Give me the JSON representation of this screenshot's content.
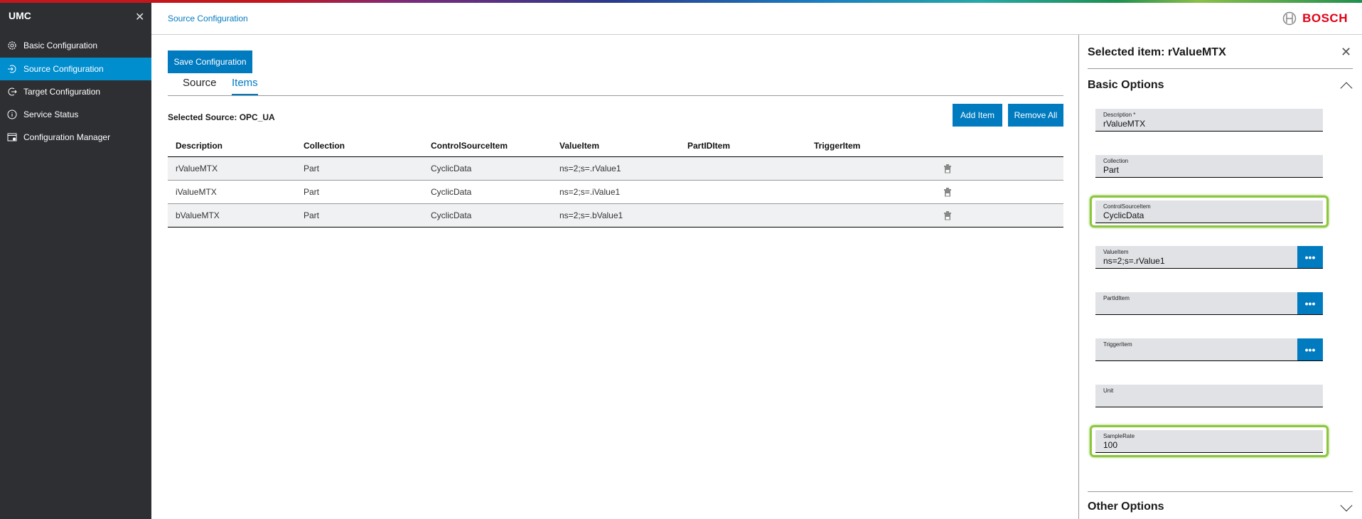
{
  "sidebar": {
    "title": "UMC",
    "items": [
      {
        "label": "Basic Configuration",
        "icon": "gear-icon"
      },
      {
        "label": "Source Configuration",
        "icon": "login-icon",
        "active": true
      },
      {
        "label": "Target Configuration",
        "icon": "logout-icon"
      },
      {
        "label": "Service Status",
        "icon": "info-icon"
      },
      {
        "label": "Configuration Manager",
        "icon": "config-manager-icon"
      }
    ]
  },
  "header": {
    "breadcrumb": "Source Configuration",
    "brand": "BOSCH"
  },
  "main": {
    "save_label": "Save Configuration",
    "tabs": [
      {
        "label": "Source"
      },
      {
        "label": "Items",
        "active": true
      }
    ],
    "selected_source": "Selected Source: OPC_UA",
    "add_item": "Add Item",
    "remove_all": "Remove All",
    "table": {
      "columns": [
        "Description",
        "Collection",
        "ControlSourceItem",
        "ValueItem",
        "PartIDItem",
        "TriggerItem"
      ],
      "rows": [
        [
          "rValueMTX",
          "Part",
          "CyclicData",
          "ns=2;s=.rValue1",
          "",
          ""
        ],
        [
          "iValueMTX",
          "Part",
          "CyclicData",
          "ns=2;s=.iValue1",
          "",
          ""
        ],
        [
          "bValueMTX",
          "Part",
          "CyclicData",
          "ns=2;s=.bValue1",
          "",
          ""
        ]
      ]
    }
  },
  "panel": {
    "title": "Selected item: rValueMTX",
    "basic_options": "Basic Options",
    "other_options": "Other Options",
    "fields": [
      {
        "label": "Description *",
        "value": "rValueMTX"
      },
      {
        "label": "Collection",
        "value": "Part"
      },
      {
        "label": "ControlSourceItem",
        "value": "CyclicData",
        "highlighted": true
      },
      {
        "label": "ValueItem",
        "value": "ns=2;s=.rValue1",
        "browse": "•••"
      },
      {
        "label": "PartIdItem",
        "value": "",
        "browse": "•••"
      },
      {
        "label": "TriggerItem",
        "value": "",
        "browse": "•••"
      },
      {
        "label": "Unit",
        "value": ""
      },
      {
        "label": "SampleRate",
        "value": "100",
        "highlighted": true
      }
    ]
  },
  "colors": {
    "accent": "#007bc0",
    "sidebar_active": "#008ecf",
    "sidebar_bg": "#2d2f33",
    "highlight": "#8cc63f",
    "brand": "#e20015"
  }
}
